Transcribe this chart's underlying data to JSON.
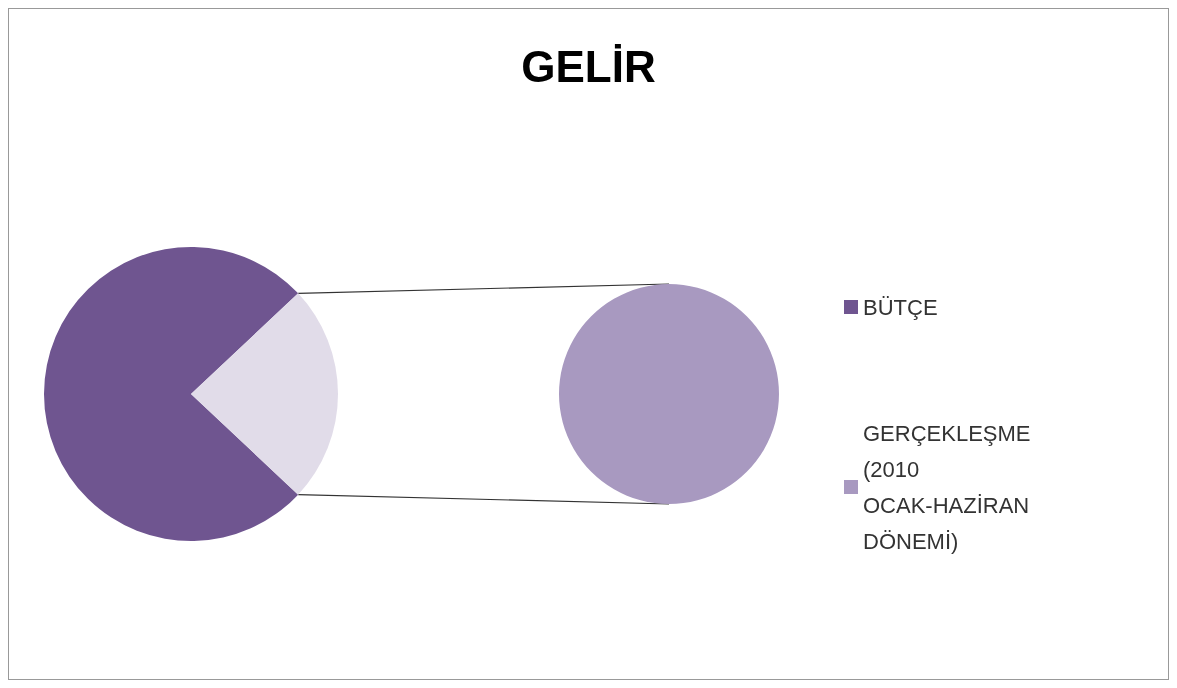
{
  "chart_data": {
    "type": "pie",
    "title": "GELİR",
    "categories": [
      "BÜTÇE",
      "GERÇEKLEŞME (2010 OCAK-HAZİRAN DÖNEMİ)"
    ],
    "series": [
      {
        "values": [
          76,
          24
        ],
        "colors": [
          "#6f5590",
          "#e1dce9"
        ]
      },
      {
        "values": [
          null,
          100
        ],
        "colors": [
          null,
          "#a899c0"
        ]
      }
    ],
    "legend": "right"
  }
}
